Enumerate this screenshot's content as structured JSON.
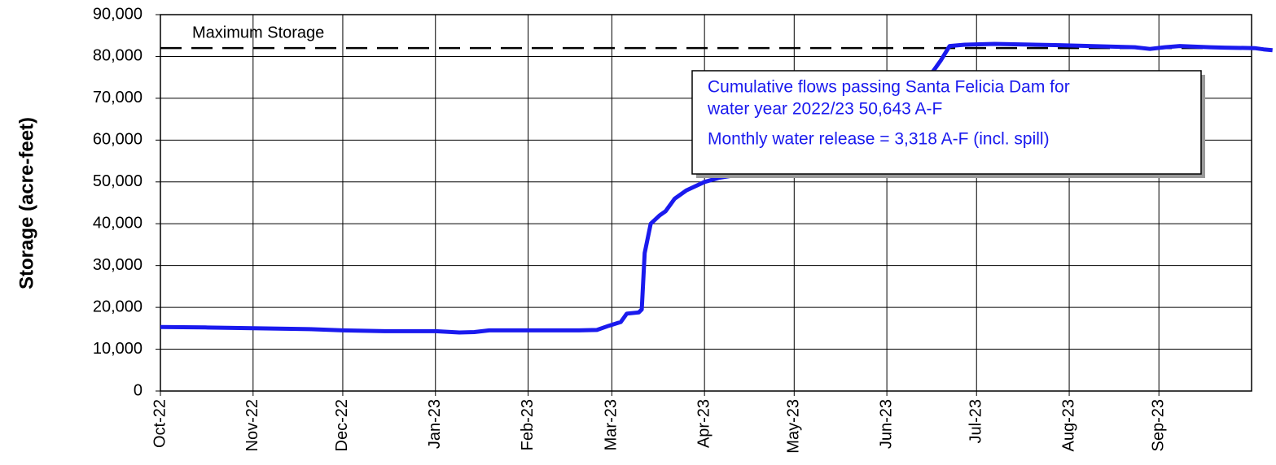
{
  "chart_data": {
    "type": "line",
    "y_label": "Storage (acre-feet)",
    "xlim": [
      0,
      365
    ],
    "xticks": [
      {
        "value": 0,
        "label": "Oct-22"
      },
      {
        "value": 31,
        "label": "Nov-22"
      },
      {
        "value": 61,
        "label": "Dec-22"
      },
      {
        "value": 92,
        "label": "Jan-23"
      },
      {
        "value": 123,
        "label": "Feb-23"
      },
      {
        "value": 151,
        "label": "Mar-23"
      },
      {
        "value": 182,
        "label": "Apr-23"
      },
      {
        "value": 212,
        "label": "May-23"
      },
      {
        "value": 243,
        "label": "Jun-23"
      },
      {
        "value": 273,
        "label": "Jul-23"
      },
      {
        "value": 304,
        "label": "Aug-23"
      },
      {
        "value": 334,
        "label": "Sep-23"
      }
    ],
    "ylim": [
      0,
      90000
    ],
    "yticks": [
      0,
      {
        "value": 10000,
        "label": "10,000"
      },
      {
        "value": 20000,
        "label": "20,000"
      },
      {
        "value": 30000,
        "label": "30,000"
      },
      {
        "value": 40000,
        "label": "40,000"
      },
      {
        "value": 50000,
        "label": "50,000"
      },
      {
        "value": 60000,
        "label": "60,000"
      },
      {
        "value": 70000,
        "label": "70,000"
      },
      {
        "value": 80000,
        "label": "80,000"
      },
      {
        "value": 90000,
        "label": "90,000"
      }
    ],
    "grid": true,
    "reference_line": {
      "label": "Maximum Storage",
      "value": 82000
    },
    "annotations": [
      "Cumulative flows passing Santa Felicia Dam for",
      "water year 2022/23   50,643  A-F",
      "Monthly water release = 3,318  A-F (incl. spill)"
    ],
    "series": [
      {
        "color": "#1a1aee",
        "x": [
          0,
          15,
          31,
          50,
          61,
          75,
          92,
          100,
          105,
          110,
          125,
          140,
          146,
          150,
          154,
          156,
          160,
          161,
          162,
          164,
          167,
          169,
          172,
          176,
          182,
          187,
          194,
          204,
          214,
          219,
          229,
          232,
          233,
          235,
          239,
          244,
          249,
          254,
          258,
          261,
          264,
          269,
          279,
          301,
          311,
          321,
          326,
          331,
          336,
          341,
          351,
          356,
          366,
          369,
          372
        ],
        "values": [
          15300,
          15200,
          15000,
          14800,
          14500,
          14300,
          14300,
          14000,
          14100,
          14500,
          14500,
          14500,
          14600,
          15600,
          16500,
          18500,
          18800,
          19500,
          33000,
          40000,
          42000,
          43000,
          46000,
          48000,
          50000,
          51000,
          51800,
          52500,
          53000,
          53300,
          53500,
          53700,
          58000,
          61000,
          63500,
          65500,
          68000,
          71000,
          76000,
          79000,
          82500,
          82800,
          83000,
          82700,
          82500,
          82300,
          82200,
          81800,
          82200,
          82500,
          82200,
          82100,
          82000,
          81700,
          81500
        ]
      }
    ]
  }
}
